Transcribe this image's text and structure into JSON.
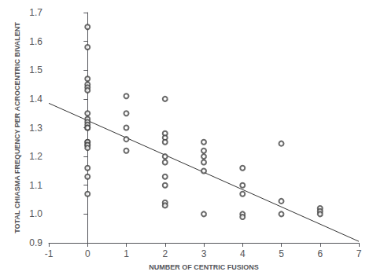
{
  "chart_data": {
    "type": "scatter",
    "xlabel": "NUMBER OF CENTRIC FUSIONS",
    "ylabel": "TOTAL CHIASMA FREQUENCY PER ACROCENTRIC BIVALENT",
    "xlim": [
      -1,
      7
    ],
    "ylim": [
      0.9,
      1.7
    ],
    "xticks": [
      -1,
      0,
      1,
      2,
      3,
      4,
      5,
      6,
      7
    ],
    "yticks": [
      0.9,
      {
        "value": 1,
        "label": "1.0"
      },
      1.1,
      1.2,
      1.3,
      1.4,
      1.5,
      1.6,
      1.7
    ],
    "grid": false,
    "series": [
      {
        "type": "scatter",
        "marker": "open circle",
        "color": "#444444",
        "x": [
          0,
          0,
          0,
          0,
          0,
          0,
          0,
          0,
          0,
          0,
          0,
          0,
          0,
          0,
          0,
          0,
          0,
          0,
          0,
          0,
          1,
          1,
          1,
          1,
          1,
          2,
          2,
          2,
          2,
          2,
          2,
          2,
          2,
          2,
          2,
          3,
          3,
          3,
          3,
          3,
          3,
          4,
          4,
          4,
          4,
          4,
          5,
          5,
          5,
          6,
          6,
          6
        ],
        "values": [
          1.65,
          1.58,
          1.47,
          1.45,
          1.44,
          1.43,
          1.35,
          1.33,
          1.32,
          1.31,
          1.3,
          1.3,
          1.25,
          1.25,
          1.24,
          1.24,
          1.23,
          1.16,
          1.13,
          1.07,
          1.41,
          1.35,
          1.3,
          1.26,
          1.22,
          1.4,
          1.28,
          1.265,
          1.25,
          1.2,
          1.18,
          1.13,
          1.1,
          1.04,
          1.03,
          1.25,
          1.22,
          1.2,
          1.18,
          1.15,
          1.0,
          1.16,
          1.1,
          1.07,
          1.0,
          0.99,
          1.245,
          1.045,
          1.0,
          1.02,
          1.01,
          1.0
        ]
      },
      {
        "type": "line",
        "color": "#333333",
        "x": [
          -1,
          7
        ],
        "values": [
          1.385,
          0.905
        ]
      }
    ]
  }
}
